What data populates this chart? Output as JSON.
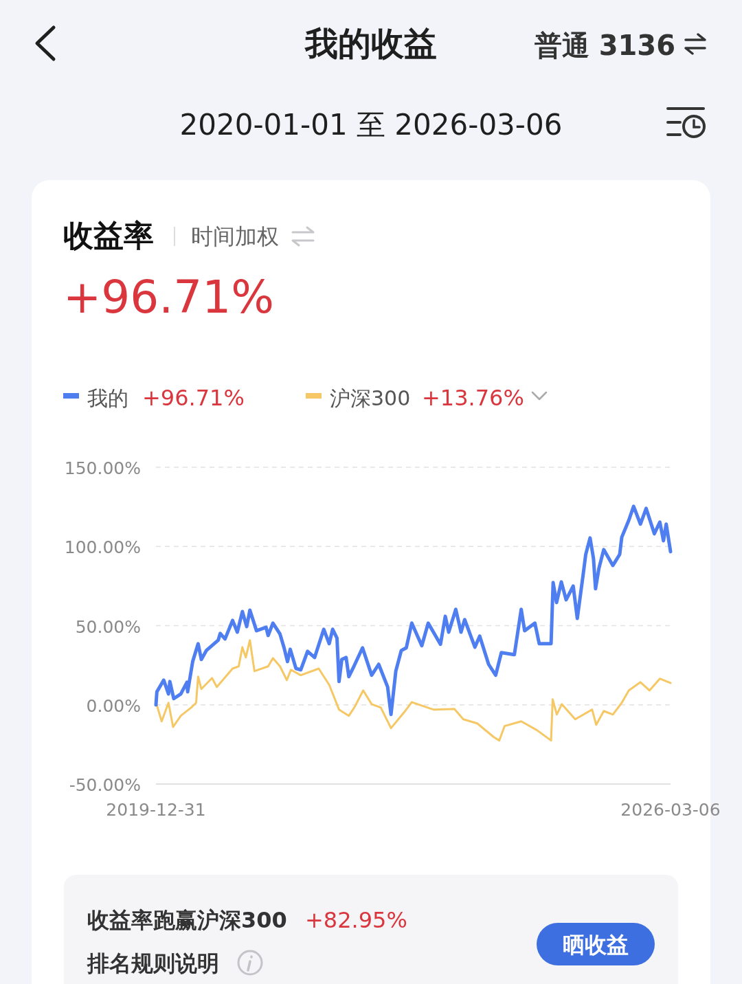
{
  "chart_data": {
    "type": "line",
    "title": "我的收益",
    "subtitle": "2020-01-01 至 2026-03-06",
    "annotations": [
      "普通 3136",
      "收益率",
      "时间加权",
      "+96.71%",
      "+96.71%",
      "+13.76%",
      "收益率跑赢沪深300",
      "+82.95%",
      "排名规则说明",
      "晒收益"
    ],
    "xlim": [
      "2019-12-31",
      "2026-03-06"
    ],
    "xticks": [
      "2019-12-31",
      "2026-03-06"
    ],
    "ylim": [
      -50,
      150
    ],
    "yticks": [
      {
        "value": -50,
        "label": "-50.00%"
      },
      {
        "value": 0,
        "label": "0.00%"
      },
      {
        "value": 50,
        "label": "50.00%"
      },
      {
        "value": 100,
        "label": "100.00%"
      },
      {
        "value": 150,
        "label": "150.00%"
      }
    ],
    "grid": "y",
    "legend": "top left",
    "series": [
      {
        "name": "沪深300",
        "color": "#f5c865",
        "x": [
          "2019-12-31",
          "2020-01-25",
          "2020-02-24",
          "2020-03-15",
          "2020-04-18",
          "2020-06-03",
          "2020-06-24",
          "2020-07-03",
          "2020-07-17",
          "2020-09-02",
          "2020-09-23",
          "2020-12-01",
          "2020-12-28",
          "2021-01-13",
          "2021-01-28",
          "2021-02-15",
          "2021-03-07",
          "2021-05-06",
          "2021-05-27",
          "2021-06-27",
          "2021-07-27",
          "2021-08-14",
          "2021-09-26",
          "2021-12-14",
          "2022-01-29",
          "2022-03-13",
          "2022-04-25",
          "2022-05-19",
          "2022-06-27",
          "2022-08-03",
          "2022-09-12",
          "2022-10-27",
          "2022-12-23",
          "2023-01-26",
          "2023-05-01",
          "2023-08-01",
          "2023-09-09",
          "2023-11-09",
          "2024-01-21",
          "2024-02-14",
          "2024-03-08",
          "2024-05-20",
          "2024-07-28",
          "2024-09-28",
          "2024-10-05",
          "2024-10-23",
          "2024-11-14",
          "2025-01-12",
          "2025-03-27",
          "2025-04-14",
          "2025-05-17",
          "2025-06-26",
          "2025-08-04",
          "2025-09-04",
          "2025-10-25",
          "2025-12-04",
          "2026-01-18",
          "2026-03-06"
        ],
        "values": [
          1.7,
          -10.4,
          1.3,
          -13.9,
          -6.9,
          -1.7,
          1.3,
          17.8,
          10.0,
          16.9,
          11.3,
          22.9,
          24.3,
          36.4,
          29.9,
          40.8,
          21.3,
          24.3,
          29.5,
          24.3,
          15.6,
          22.1,
          18.7,
          22.9,
          12.6,
          -3.0,
          -6.9,
          -1.7,
          9.1,
          0.4,
          -1.7,
          -14.7,
          -4.8,
          1.7,
          -3.0,
          -2.6,
          -9.1,
          -11.7,
          -20.4,
          -22.5,
          -13.4,
          -10.4,
          -16.0,
          -22.5,
          3.5,
          -6.1,
          0.4,
          -9.1,
          -3.0,
          -12.6,
          -3.9,
          -6.1,
          1.3,
          9.1,
          14.3,
          9.1,
          16.5,
          13.8
        ]
      },
      {
        "name": "我的",
        "color": "#4e7ef0",
        "x": [
          "2019-12-31",
          "2020-01-04",
          "2020-02-03",
          "2020-02-24",
          "2020-03-01",
          "2020-03-18",
          "2020-04-18",
          "2020-05-15",
          "2020-05-18",
          "2020-06-09",
          "2020-07-03",
          "2020-07-17",
          "2020-08-08",
          "2020-09-29",
          "2020-10-08",
          "2020-10-29",
          "2020-12-01",
          "2020-12-22",
          "2021-01-13",
          "2021-02-01",
          "2021-02-15",
          "2021-03-16",
          "2021-04-27",
          "2021-05-06",
          "2021-05-27",
          "2021-06-27",
          "2021-07-15",
          "2021-07-30",
          "2021-08-11",
          "2021-09-05",
          "2021-09-26",
          "2021-10-26",
          "2021-11-26",
          "2022-01-05",
          "2022-01-29",
          "2022-02-13",
          "2022-03-04",
          "2022-03-13",
          "2022-03-25",
          "2022-04-13",
          "2022-04-25",
          "2022-05-13",
          "2022-06-24",
          "2022-08-03",
          "2022-09-03",
          "2022-10-12",
          "2022-10-27",
          "2022-11-17",
          "2022-12-11",
          "2023-01-02",
          "2023-01-26",
          "2023-03-11",
          "2023-04-08",
          "2023-06-01",
          "2023-06-22",
          "2023-07-07",
          "2023-08-07",
          "2023-08-30",
          "2023-09-15",
          "2023-10-30",
          "2023-11-20",
          "2023-12-29",
          "2024-01-29",
          "2024-02-23",
          "2024-04-20",
          "2024-05-20",
          "2024-06-04",
          "2024-07-19",
          "2024-08-07",
          "2024-09-28",
          "2024-10-07",
          "2024-10-22",
          "2024-11-12",
          "2024-12-03",
          "2025-01-03",
          "2025-01-21",
          "2025-02-17",
          "2025-02-27",
          "2025-03-18",
          "2025-04-02",
          "2025-04-11",
          "2025-04-26",
          "2025-05-17",
          "2025-06-26",
          "2025-07-26",
          "2025-08-04",
          "2025-09-04",
          "2025-09-25",
          "2025-10-25",
          "2025-11-19",
          "2025-12-25",
          "2026-01-18",
          "2026-02-03",
          "2026-02-15",
          "2026-03-06"
        ],
        "values": [
          0,
          8.2,
          15.6,
          6.9,
          14.7,
          3.9,
          6.9,
          14.3,
          8.2,
          27.3,
          38.6,
          28.6,
          34.3,
          40.8,
          45.1,
          41.6,
          53.3,
          45.9,
          58.9,
          49.4,
          59.8,
          46.8,
          49.0,
          43.8,
          51.6,
          44.7,
          36.0,
          27.3,
          35.1,
          23.0,
          22.1,
          33.8,
          29.9,
          47.7,
          38.6,
          47.7,
          42.1,
          14.7,
          28.6,
          29.9,
          17.8,
          23.0,
          36.0,
          18.7,
          25.6,
          11.3,
          -6.1,
          21.3,
          34.3,
          36.0,
          51.6,
          37.3,
          51.6,
          38.2,
          55.9,
          45.9,
          60.3,
          45.9,
          53.8,
          36.4,
          43.4,
          25.6,
          18.7,
          33.0,
          31.7,
          60.3,
          46.8,
          51.6,
          38.6,
          38.6,
          77.2,
          64.6,
          77.6,
          66.3,
          75.0,
          54.6,
          83.7,
          95.0,
          105.4,
          92.4,
          73.3,
          86.3,
          98.0,
          88.0,
          95.0,
          105.8,
          116.6,
          125.3,
          114.1,
          124.0,
          108.0,
          115.4,
          103.6,
          114.1,
          96.7
        ]
      }
    ]
  }
}
